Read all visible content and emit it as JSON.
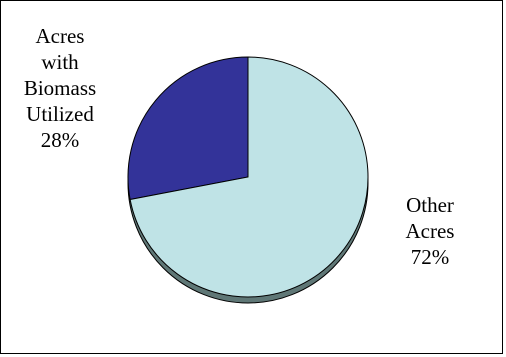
{
  "chart_data": {
    "type": "pie",
    "title": "",
    "style": "3d-tilted",
    "slices": [
      {
        "label_lines": [
          "Acres",
          "with",
          "Biomass",
          "Utilized",
          "28%"
        ],
        "value": 28,
        "color": "#333399"
      },
      {
        "label_lines": [
          "Other",
          "Acres",
          "72%"
        ],
        "value": 72,
        "color": "#bfe3e6"
      }
    ],
    "depth_color": "#5f7776",
    "legend": "none",
    "grid": false
  }
}
